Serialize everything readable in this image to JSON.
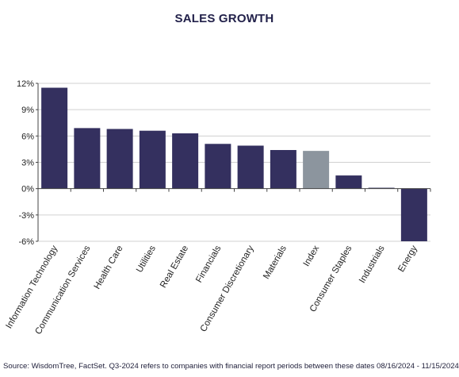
{
  "chart_data": {
    "type": "bar",
    "title": "SALES GROWTH",
    "categories": [
      "Information Technology",
      "Communication Services",
      "Health Care",
      "Utilities",
      "Real Estate",
      "Financials",
      "Consumer Discretionary",
      "Materials",
      "Index",
      "Consumer Staples",
      "Industrials",
      "Energy"
    ],
    "values": [
      11.5,
      6.9,
      6.8,
      6.6,
      6.3,
      5.1,
      4.9,
      4.4,
      4.3,
      1.5,
      0.1,
      -6.0
    ],
    "highlight_category": "Index",
    "ylim": [
      -6,
      12
    ],
    "yticks": [
      -6,
      -3,
      0,
      3,
      6,
      9,
      12
    ],
    "ytick_labels": [
      "-6%",
      "-3%",
      "0%",
      "3%",
      "6%",
      "9%",
      "12%"
    ],
    "xlabel": "",
    "ylabel": "",
    "grid": true,
    "colors": {
      "bar": "#34305f",
      "highlight": "#8c959e",
      "grid": "#d0d0d0",
      "axis": "#444444"
    }
  },
  "source": "Source: WisdomTree, FactSet. Q3-2024 refers to companies with financial report periods between these dates 08/16/2024 - 11/15/2024"
}
